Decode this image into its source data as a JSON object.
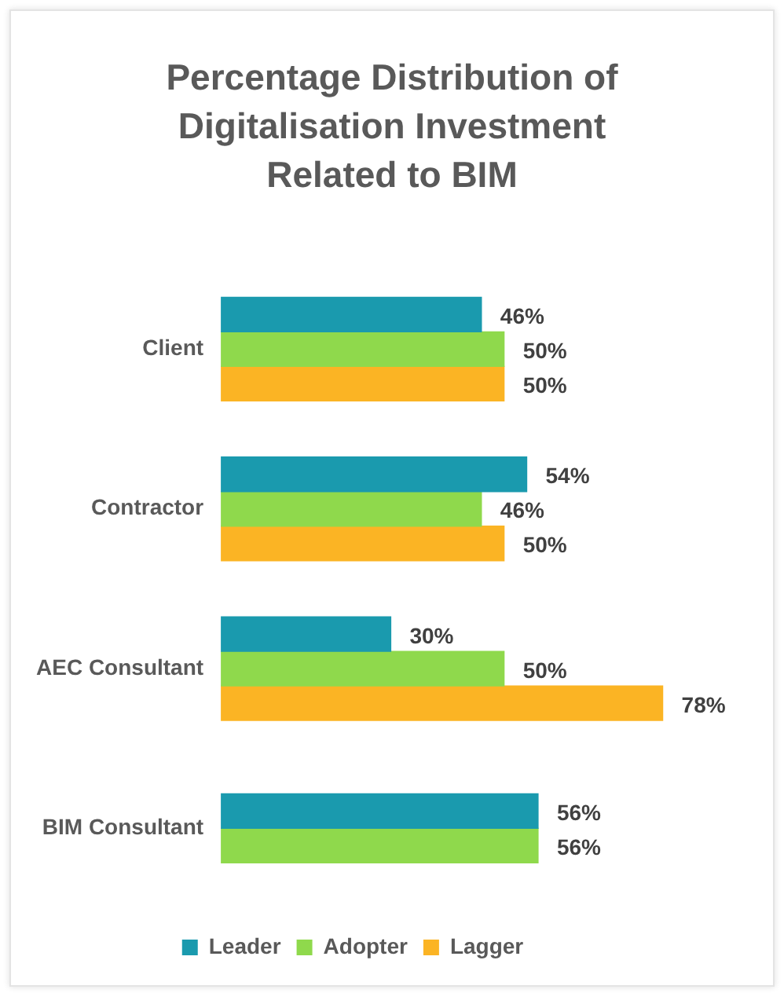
{
  "chart_data": {
    "type": "bar",
    "orientation": "horizontal",
    "title": "Percentage Distribution of Digitalisation Investment Related to BIM",
    "categories": [
      "Client",
      "Contractor",
      "AEC Consultant",
      "BIM Consultant"
    ],
    "tick_labels": "y",
    "grid": false,
    "legend": "bottom",
    "series": [
      {
        "name": "Leader",
        "color": "#1a9aae",
        "values": [
          46,
          54,
          30,
          56
        ],
        "value_labels": [
          "46%",
          "54%",
          "30%",
          "56%"
        ]
      },
      {
        "name": "Adopter",
        "color": "#8fd94c",
        "values": [
          50,
          46,
          50,
          56
        ],
        "value_labels": [
          "50%",
          "46%",
          "50%",
          "56%"
        ]
      },
      {
        "name": "Lagger",
        "color": "#fbb424",
        "values": [
          50,
          50,
          78,
          null
        ],
        "value_labels": [
          "50%",
          "50%",
          "78%",
          null
        ]
      }
    ]
  }
}
